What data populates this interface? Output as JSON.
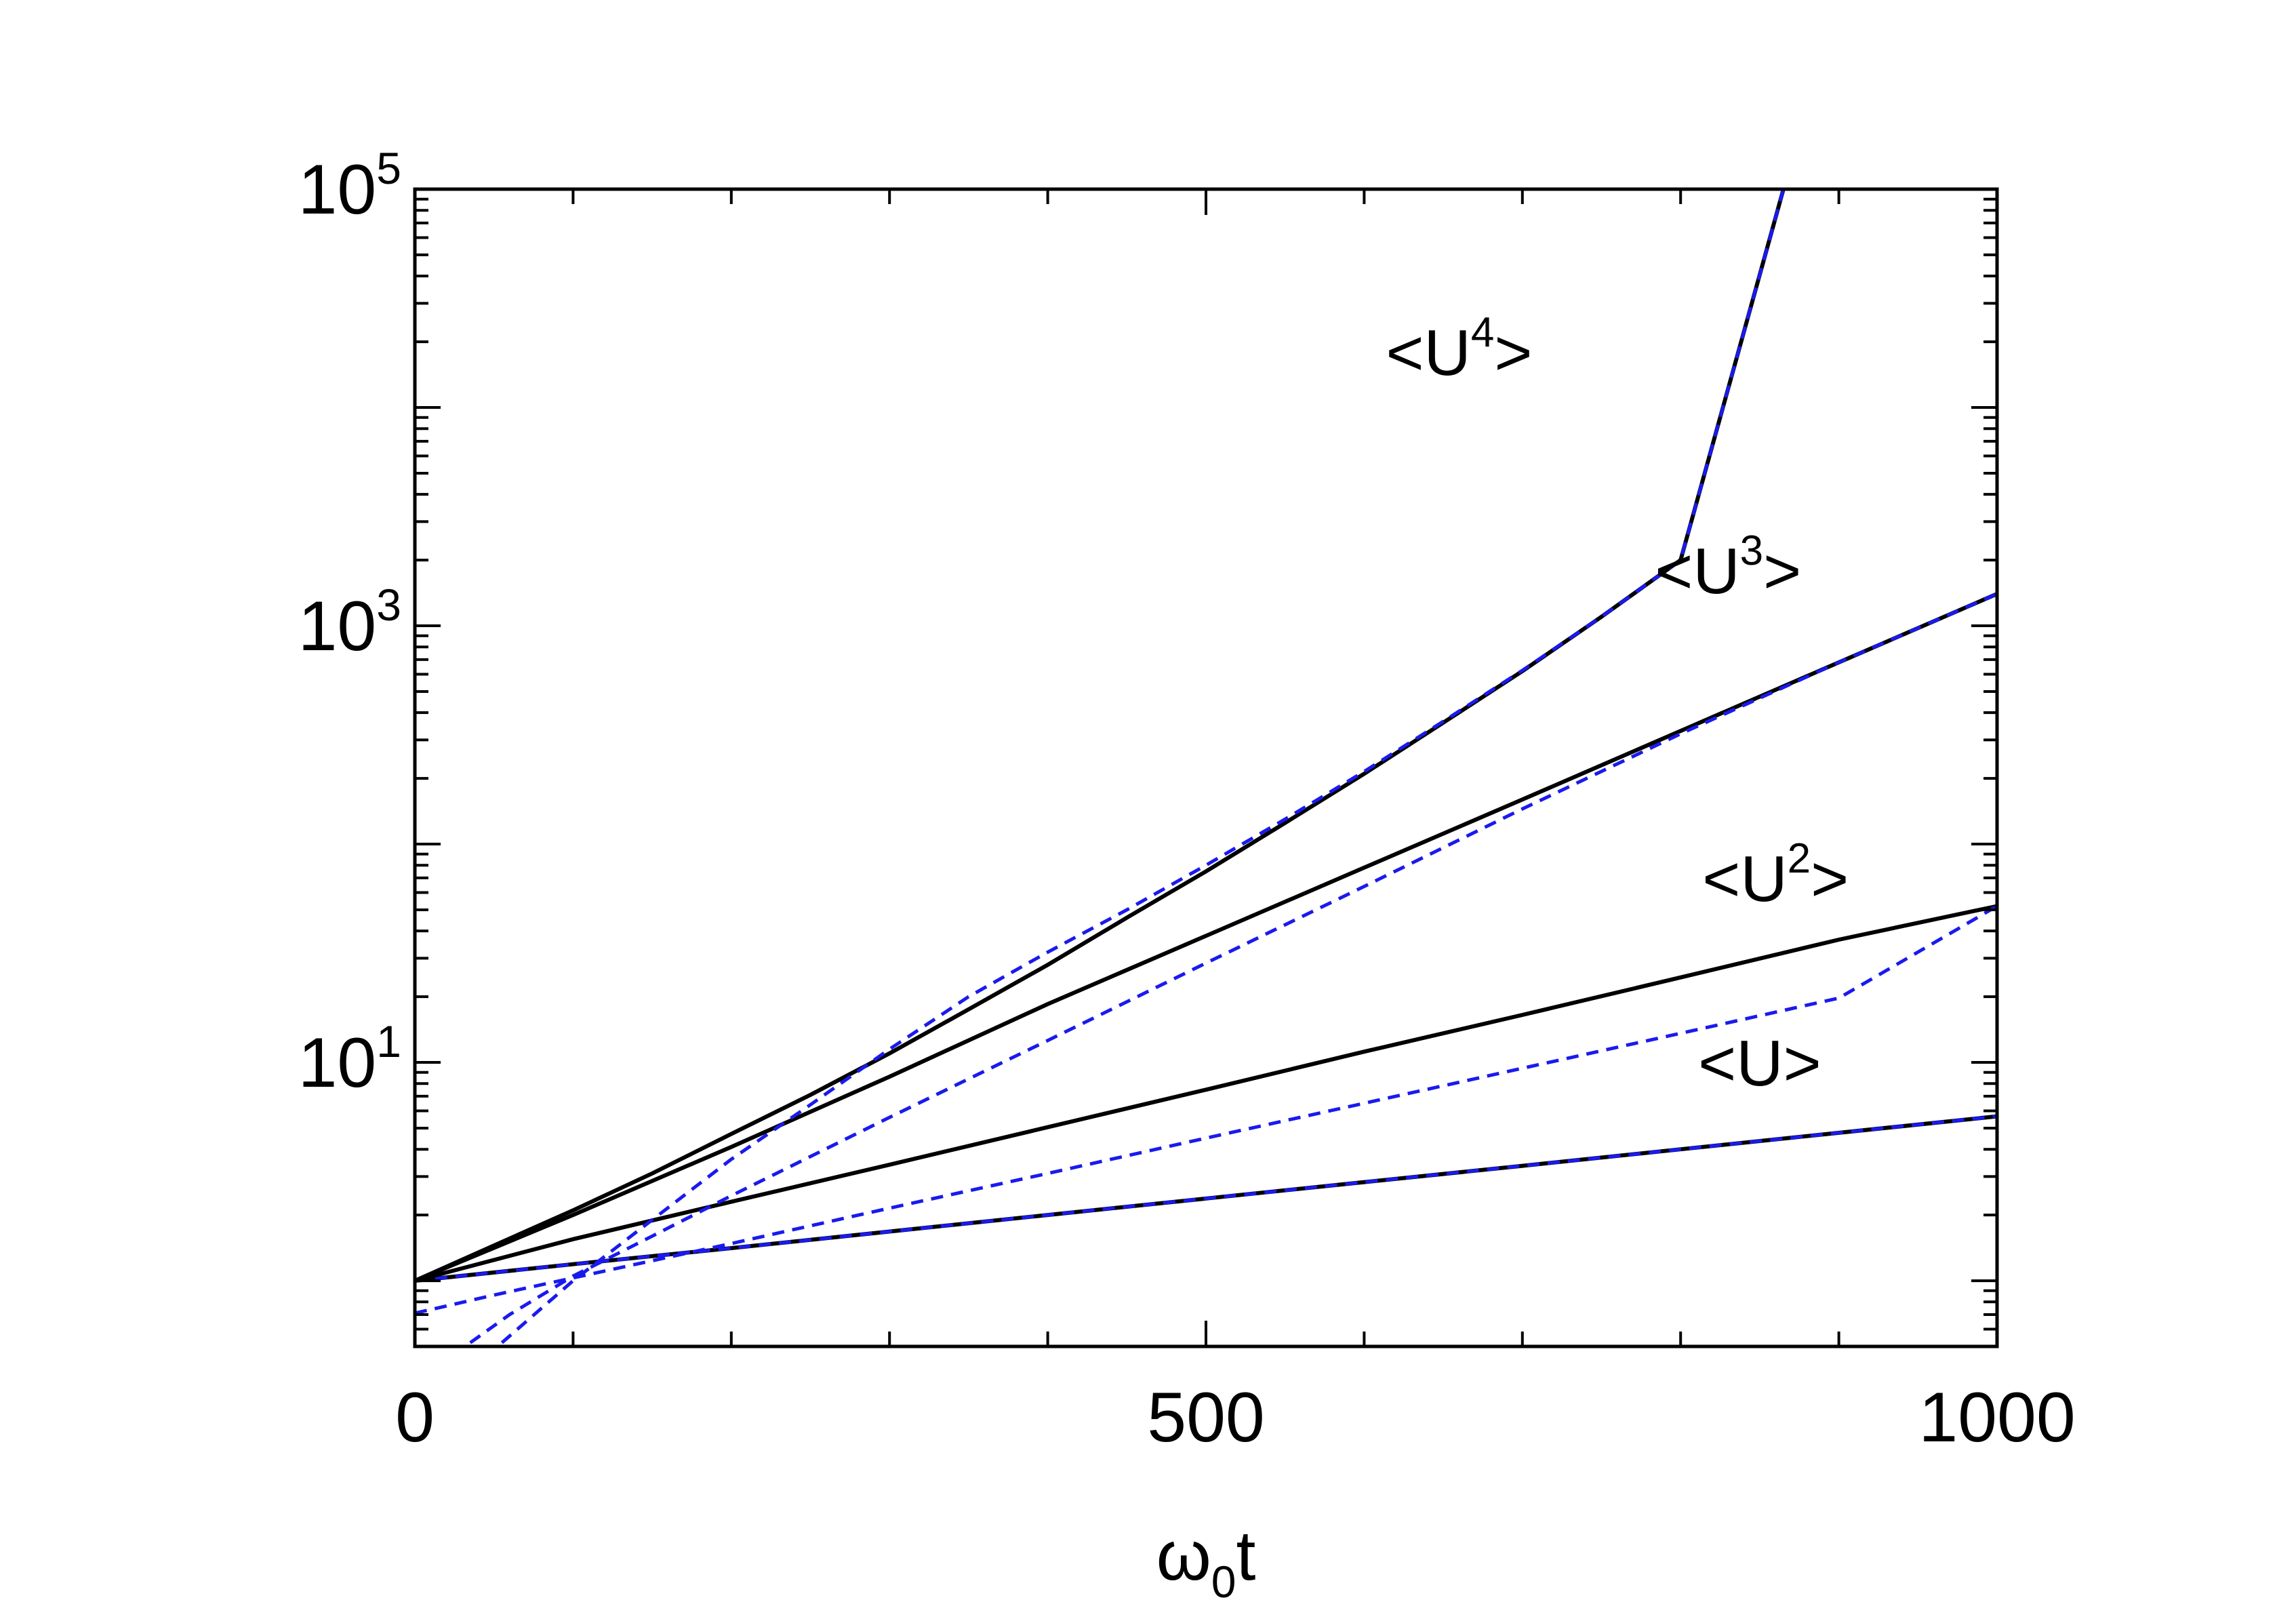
{
  "chart_data": {
    "type": "line",
    "title": "",
    "xlabel": {
      "base": "ω",
      "sub": "0",
      "suffix": "t"
    },
    "ylabel": "",
    "xlim": [
      0,
      1000
    ],
    "ylim": [
      0.5,
      100000
    ],
    "yscale": "log",
    "grid": false,
    "legend": "none",
    "x_ticks": [
      {
        "value": 0,
        "label": "0"
      },
      {
        "value": 500,
        "label": "500"
      },
      {
        "value": 1000,
        "label": "1000"
      }
    ],
    "y_ticks": [
      {
        "value": 10,
        "base": "10",
        "exp": "1"
      },
      {
        "value": 1000,
        "base": "10",
        "exp": "3"
      },
      {
        "value": 100000,
        "base": "10",
        "exp": "5"
      }
    ],
    "colors": {
      "exact": "#000000",
      "asymptotic": "#1a1aee"
    },
    "series": [
      {
        "label": {
          "text": "<U>",
          "exp": "",
          "suffix": "",
          "at": [
            850,
            10.0
          ]
        },
        "exact": {
          "x": [
            0,
            100,
            200,
            300,
            400,
            500,
            600,
            700,
            800,
            900,
            1000
          ],
          "y": [
            1.0,
            1.19,
            1.41,
            1.68,
            2.0,
            2.38,
            2.83,
            3.36,
            4.0,
            4.76,
            5.66
          ]
        },
        "asymptotic": {
          "x": [
            0,
            100,
            200,
            300,
            400,
            500,
            600,
            700,
            800,
            900,
            1000
          ],
          "y": [
            1.0,
            1.19,
            1.41,
            1.68,
            2.0,
            2.38,
            2.83,
            3.36,
            4.0,
            4.76,
            5.66
          ]
        }
      },
      {
        "label": {
          "text": "<U",
          "exp": "2",
          "suffix": ">",
          "at": [
            860,
            70.0
          ]
        },
        "exact": {
          "x": [
            0,
            100,
            200,
            300,
            400,
            500,
            600,
            700,
            800,
            900,
            1000
          ],
          "y": [
            1.0,
            1.55,
            2.3,
            3.4,
            5.05,
            7.5,
            11.2,
            16.5,
            24.5,
            36.5,
            52.0
          ]
        },
        "asymptotic": {
          "x": [
            0,
            50,
            100,
            200,
            300,
            400,
            500,
            600,
            700,
            800,
            900,
            1000
          ],
          "y": [
            0.71,
            0.86,
            1.03,
            1.48,
            2.15,
            3.1,
            4.5,
            6.5,
            9.4,
            13.6,
            19.7,
            52.0
          ]
        }
      },
      {
        "label": {
          "text": "<U",
          "exp": "3",
          "suffix": ">",
          "at": [
            830,
            1800.0
          ]
        },
        "exact": {
          "x": [
            0,
            100,
            200,
            300,
            400,
            500,
            600,
            700,
            800,
            900,
            1000
          ],
          "y": [
            1.0,
            2.0,
            4.1,
            8.6,
            18.5,
            38.0,
            78.0,
            160.0,
            330.0,
            680.0,
            1400.0
          ]
        },
        "asymptotic": {
          "x": [
            35,
            60,
            100,
            150,
            200,
            300,
            400,
            500,
            600,
            700,
            800,
            900,
            1000
          ],
          "y": [
            0.52,
            0.7,
            1.05,
            1.6,
            2.45,
            5.6,
            12.6,
            28.5,
            64.0,
            145.0,
            320.0,
            680.0,
            1400.0
          ]
        }
      },
      {
        "label": {
          "text": "<U",
          "exp": "4",
          "suffix": ">",
          "at": [
            660,
            18000.0
          ]
        },
        "exact": {
          "x": [
            0,
            50,
            100,
            150,
            200,
            250,
            300,
            350,
            400,
            450,
            500,
            550,
            600,
            650,
            700,
            750,
            800,
            865
          ],
          "y": [
            1.0,
            1.45,
            2.1,
            3.1,
            4.7,
            7.1,
            11.0,
            17.5,
            28.0,
            46.0,
            75.0,
            125.0,
            210.0,
            360.0,
            620.0,
            1100.0,
            2000.0,
            100000.0
          ]
        },
        "asymptotic": {
          "x": [
            55,
            100,
            150,
            200,
            250,
            300,
            350,
            400,
            450,
            500,
            550,
            600,
            650,
            700,
            750,
            800,
            865
          ],
          "y": [
            0.52,
            1.0,
            1.9,
            3.6,
            6.4,
            11.5,
            20.0,
            32.0,
            50.0,
            80.0,
            130.0,
            215.0,
            365.0,
            625.0,
            1100.0,
            2000.0,
            100000.0
          ]
        }
      }
    ]
  }
}
